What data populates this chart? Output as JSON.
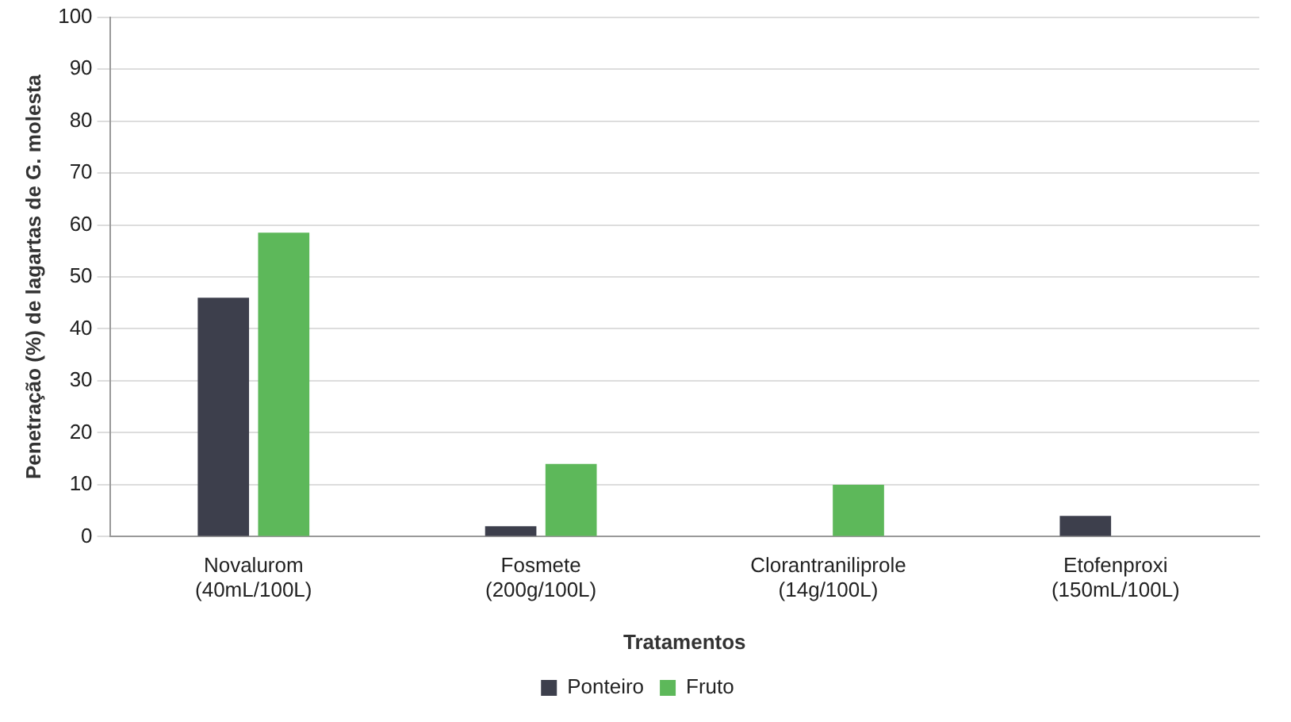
{
  "chart_data": {
    "type": "bar",
    "xlabel": "Tratamentos",
    "ylabel": "Penetração (%) de lagartas de G. molesta",
    "categories": [
      "Novalurom\n(40mL/100L)",
      "Fosmete\n(200g/100L)",
      "Clorantraniliprole\n(14g/100L)",
      "Etofenproxi\n(150mL/100L)"
    ],
    "series": [
      {
        "name": "Ponteiro",
        "color": "#3d3f4c",
        "values": [
          46,
          2,
          0,
          4
        ]
      },
      {
        "name": "Fruto",
        "color": "#5db85a",
        "values": [
          58.5,
          14,
          10,
          0
        ]
      }
    ],
    "ylim": [
      0,
      100
    ],
    "yticks": [
      0,
      10,
      20,
      30,
      40,
      50,
      60,
      70,
      80,
      90,
      100
    ],
    "grid": "y",
    "legend": "bottom"
  }
}
